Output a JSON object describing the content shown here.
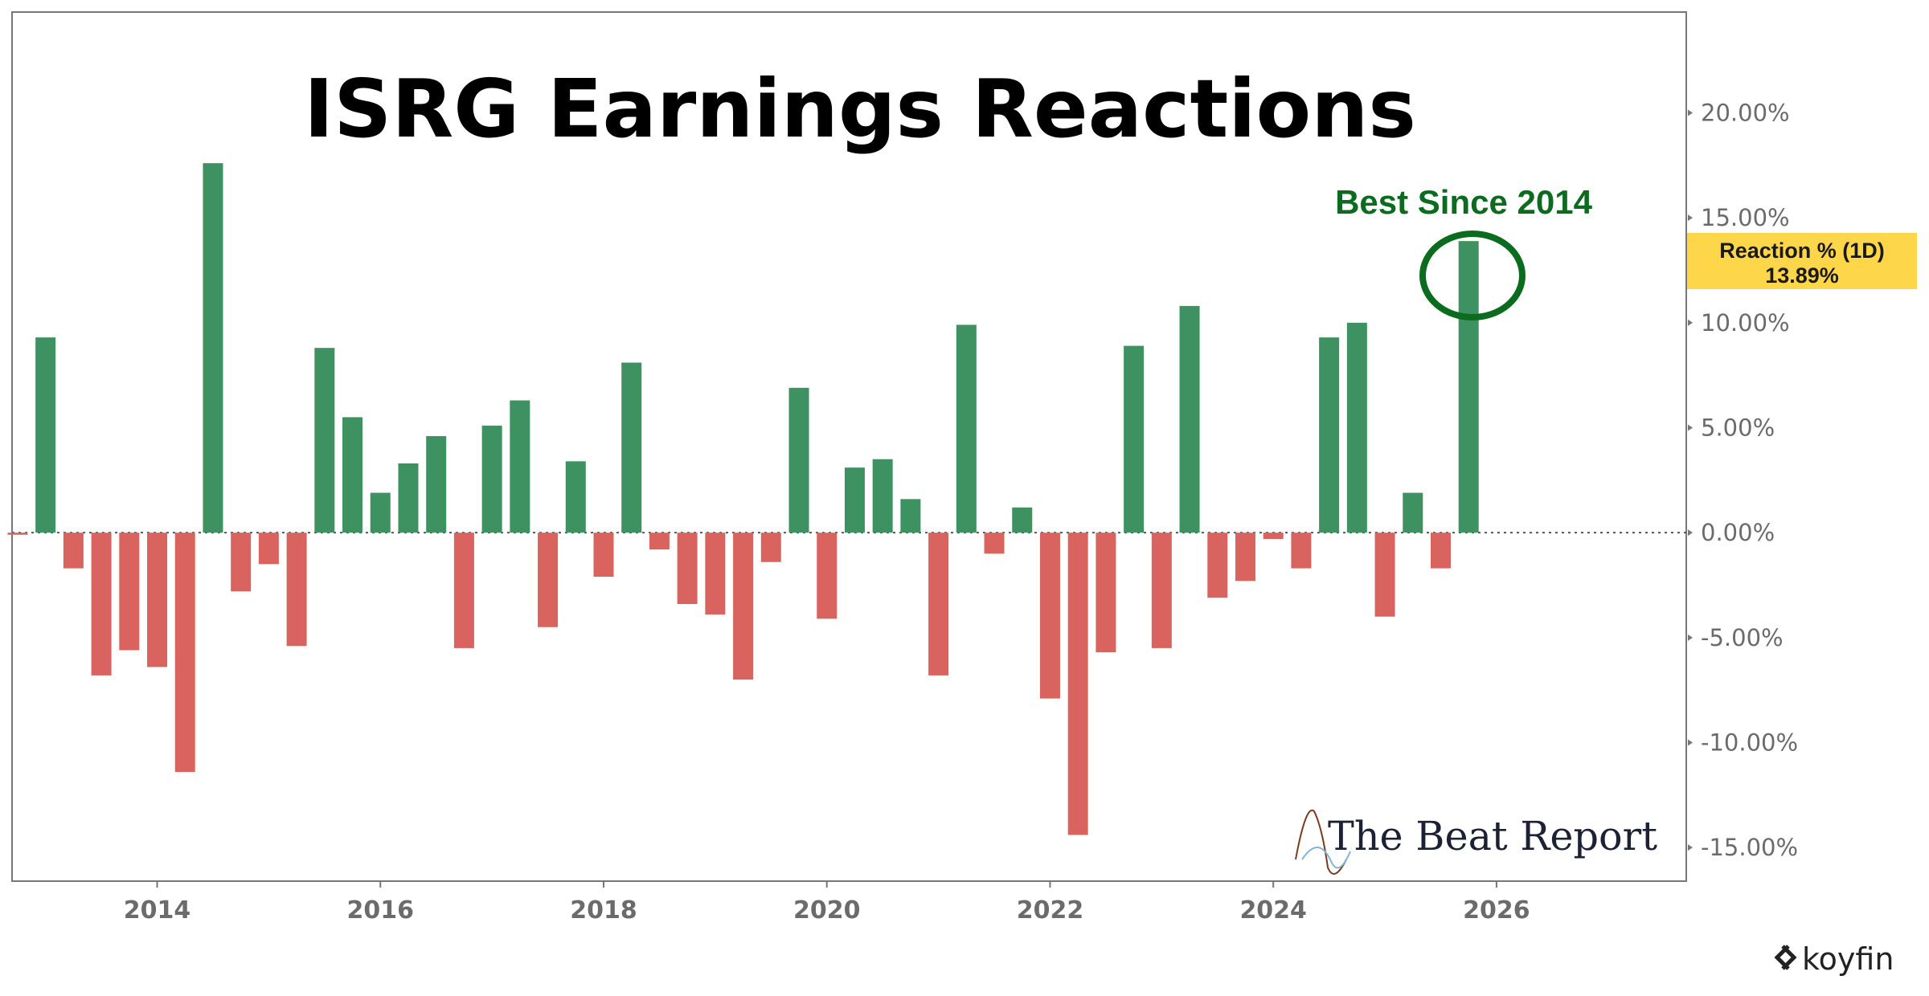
{
  "chart_data": {
    "type": "bar",
    "title": "ISRG Earnings Reactions",
    "series_name": "Reaction % (1D)",
    "last_value_label": "13.89%",
    "annotation": "Best Since 2014",
    "watermark": "The Beat Report",
    "source": "koyfin",
    "x_start": 2012.75,
    "x_step": 0.25,
    "values": [
      -0.1,
      9.3,
      -1.7,
      -6.8,
      -5.6,
      -6.4,
      -11.4,
      17.6,
      -2.8,
      -1.5,
      -5.4,
      8.8,
      5.5,
      1.9,
      3.3,
      4.6,
      -5.5,
      5.1,
      6.3,
      -4.5,
      3.4,
      -2.1,
      8.1,
      -0.8,
      -3.4,
      -3.9,
      -7.0,
      -1.4,
      6.9,
      -4.1,
      3.1,
      3.5,
      1.6,
      -6.8,
      9.9,
      -1.0,
      1.2,
      -7.9,
      -14.4,
      -5.7,
      8.9,
      -5.5,
      10.8,
      -3.1,
      -2.3,
      -0.3,
      -1.7,
      9.3,
      10.0,
      -4.0,
      1.9,
      -1.7,
      13.89
    ],
    "x_ticks": [
      "2014",
      "2016",
      "2018",
      "2020",
      "2022",
      "2024",
      "2026"
    ],
    "x_tick_values": [
      2014,
      2016,
      2018,
      2020,
      2022,
      2024,
      2026
    ],
    "y_ticks": [
      "20.00%",
      "15.00%",
      "10.00%",
      "5.00%",
      "0.00%",
      "-5.00%",
      "-10.00%",
      "-15.00%"
    ],
    "y_tick_values": [
      20,
      15,
      10,
      5,
      0,
      -5,
      -10,
      -15
    ],
    "ylim": [
      -16.6,
      24.8
    ],
    "xlim": [
      2012.7,
      2027.7
    ],
    "colors": {
      "positive": "#3e9160",
      "negative": "#d9645f",
      "annotation": "#0b6b1f",
      "label_bg": "#fdd64a"
    }
  }
}
